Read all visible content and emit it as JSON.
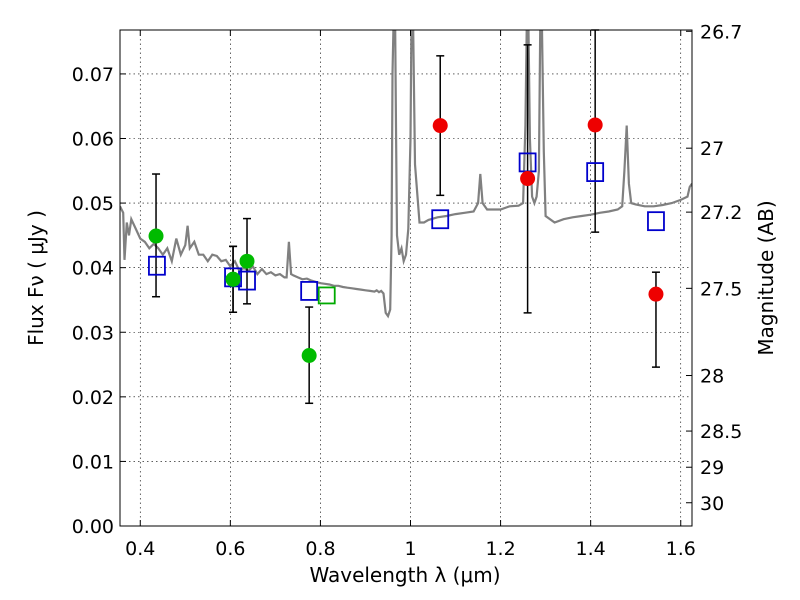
{
  "chart_data": {
    "type": "scatter",
    "title": "",
    "xlabel": "Wavelength  λ (μm)",
    "ylabel": "Flux  Fν  ( μJy )",
    "y2label": "Magnitude (AB)",
    "xlim": [
      0.355,
      1.625
    ],
    "ylim": [
      0.0,
      0.0768
    ],
    "grid": true,
    "x_ticks": [
      0.4,
      0.6,
      0.8,
      1.0,
      1.2,
      1.4,
      1.6
    ],
    "x_tick_labels": [
      "0.4",
      "0.6",
      "0.8",
      "1",
      "1.2",
      "1.4",
      "1.6"
    ],
    "y_ticks": [
      0.0,
      0.01,
      0.02,
      0.03,
      0.04,
      0.05,
      0.06,
      0.07
    ],
    "y_tick_labels": [
      "0.00",
      "0.01",
      "0.02",
      "0.03",
      "0.04",
      "0.05",
      "0.06",
      "0.07"
    ],
    "y2_ticks": [
      {
        "label": "26.7",
        "flux": 0.0766
      },
      {
        "label": "27",
        "flux": 0.0585
      },
      {
        "label": "27.2",
        "flux": 0.0486
      },
      {
        "label": "27.5",
        "flux": 0.0368
      },
      {
        "label": "28",
        "flux": 0.0233
      },
      {
        "label": "28.5",
        "flux": 0.0147
      },
      {
        "label": "29",
        "flux": 0.0091
      },
      {
        "label": "30",
        "flux": 0.0036
      }
    ],
    "colors": {
      "green": "#00bb00",
      "red": "#ee0000",
      "blue_square": "#0000cc",
      "green_square": "#00aa00",
      "model": "#808080",
      "errorbar": "#000000"
    },
    "series": [
      {
        "marker": "circle-green",
        "points": [
          {
            "x": 0.435,
            "y": 0.0449,
            "lo": 0.0355,
            "hi": 0.0545
          },
          {
            "x": 0.606,
            "y": 0.0382,
            "lo": 0.0331,
            "hi": 0.0433
          },
          {
            "x": 0.606,
            "y": 0.0382,
            "lo": 0.0331,
            "hi": 0.0433
          },
          {
            "x": 0.637,
            "y": 0.041,
            "lo": 0.0344,
            "hi": 0.0476
          },
          {
            "x": 0.775,
            "y": 0.0264,
            "lo": 0.019,
            "hi": 0.0339
          }
        ]
      },
      {
        "marker": "circle-red",
        "points": [
          {
            "x": 1.066,
            "y": 0.062,
            "lo": 0.0512,
            "hi": 0.0728
          },
          {
            "x": 1.26,
            "y": 0.0538,
            "lo": 0.033,
            "hi": 0.0745
          },
          {
            "x": 1.41,
            "y": 0.0621,
            "lo": 0.0455,
            "hi": 0.0768
          },
          {
            "x": 1.545,
            "y": 0.0359,
            "lo": 0.0246,
            "hi": 0.0393
          }
        ]
      },
      {
        "marker": "square-blue",
        "points": [
          {
            "x": 0.437,
            "y": 0.0403
          },
          {
            "x": 0.606,
            "y": 0.0385
          },
          {
            "x": 0.637,
            "y": 0.038
          },
          {
            "x": 0.775,
            "y": 0.0364
          },
          {
            "x": 1.066,
            "y": 0.0475
          },
          {
            "x": 1.26,
            "y": 0.0563
          },
          {
            "x": 1.41,
            "y": 0.0548
          },
          {
            "x": 1.545,
            "y": 0.0472
          }
        ]
      },
      {
        "marker": "square-green",
        "points": [
          {
            "x": 0.814,
            "y": 0.0357
          }
        ]
      },
      {
        "marker": "model-line",
        "points": [
          [
            0.355,
            0.0495
          ],
          [
            0.362,
            0.0485
          ],
          [
            0.365,
            0.0412
          ],
          [
            0.37,
            0.047
          ],
          [
            0.375,
            0.045
          ],
          [
            0.38,
            0.0475
          ],
          [
            0.39,
            0.046
          ],
          [
            0.4,
            0.0445
          ],
          [
            0.41,
            0.044
          ],
          [
            0.42,
            0.043
          ],
          [
            0.43,
            0.0437
          ],
          [
            0.44,
            0.043
          ],
          [
            0.45,
            0.042
          ],
          [
            0.46,
            0.043
          ],
          [
            0.47,
            0.041
          ],
          [
            0.48,
            0.0445
          ],
          [
            0.49,
            0.042
          ],
          [
            0.5,
            0.0435
          ],
          [
            0.505,
            0.0465
          ],
          [
            0.51,
            0.043
          ],
          [
            0.52,
            0.044
          ],
          [
            0.53,
            0.042
          ],
          [
            0.54,
            0.042
          ],
          [
            0.55,
            0.041
          ],
          [
            0.56,
            0.042
          ],
          [
            0.57,
            0.0418
          ],
          [
            0.58,
            0.041
          ],
          [
            0.59,
            0.0412
          ],
          [
            0.6,
            0.0402
          ],
          [
            0.61,
            0.041
          ],
          [
            0.62,
            0.0395
          ],
          [
            0.63,
            0.04
          ],
          [
            0.64,
            0.0395
          ],
          [
            0.65,
            0.0402
          ],
          [
            0.66,
            0.039
          ],
          [
            0.67,
            0.0398
          ],
          [
            0.68,
            0.039
          ],
          [
            0.69,
            0.0393
          ],
          [
            0.7,
            0.0388
          ],
          [
            0.71,
            0.039
          ],
          [
            0.72,
            0.0385
          ],
          [
            0.725,
            0.0385
          ],
          [
            0.73,
            0.044
          ],
          [
            0.735,
            0.039
          ],
          [
            0.74,
            0.0388
          ],
          [
            0.75,
            0.0385
          ],
          [
            0.76,
            0.0382
          ],
          [
            0.77,
            0.0383
          ],
          [
            0.78,
            0.038
          ],
          [
            0.79,
            0.0378
          ],
          [
            0.8,
            0.0376
          ],
          [
            0.81,
            0.0375
          ],
          [
            0.82,
            0.0374
          ],
          [
            0.83,
            0.0372
          ],
          [
            0.84,
            0.0372
          ],
          [
            0.85,
            0.037
          ],
          [
            0.86,
            0.0369
          ],
          [
            0.87,
            0.0368
          ],
          [
            0.88,
            0.0367
          ],
          [
            0.89,
            0.0366
          ],
          [
            0.9,
            0.0365
          ],
          [
            0.91,
            0.0364
          ],
          [
            0.92,
            0.0363
          ],
          [
            0.925,
            0.0365
          ],
          [
            0.93,
            0.0362
          ],
          [
            0.935,
            0.0364
          ],
          [
            0.94,
            0.036
          ],
          [
            0.945,
            0.033
          ],
          [
            0.95,
            0.0325
          ],
          [
            0.955,
            0.0335
          ],
          [
            0.958,
            0.045
          ],
          [
            0.96,
            0.07
          ],
          [
            0.962,
            0.0768
          ],
          [
            0.966,
            0.0768
          ],
          [
            0.968,
            0.06
          ],
          [
            0.97,
            0.045
          ],
          [
            0.975,
            0.042
          ],
          [
            0.98,
            0.043
          ],
          [
            0.985,
            0.041
          ],
          [
            0.99,
            0.042
          ],
          [
            0.995,
            0.046
          ],
          [
            1.0,
            0.06
          ],
          [
            1.002,
            0.0768
          ],
          [
            1.006,
            0.0768
          ],
          [
            1.01,
            0.056
          ],
          [
            1.02,
            0.047
          ],
          [
            1.03,
            0.047
          ],
          [
            1.04,
            0.0474
          ],
          [
            1.06,
            0.0478
          ],
          [
            1.08,
            0.048
          ],
          [
            1.1,
            0.0483
          ],
          [
            1.12,
            0.0485
          ],
          [
            1.14,
            0.0487
          ],
          [
            1.15,
            0.05
          ],
          [
            1.155,
            0.0545
          ],
          [
            1.16,
            0.05
          ],
          [
            1.17,
            0.049
          ],
          [
            1.18,
            0.049
          ],
          [
            1.2,
            0.049
          ],
          [
            1.22,
            0.0495
          ],
          [
            1.24,
            0.0496
          ],
          [
            1.25,
            0.05
          ],
          [
            1.255,
            0.062
          ],
          [
            1.258,
            0.0768
          ],
          [
            1.262,
            0.0768
          ],
          [
            1.265,
            0.06
          ],
          [
            1.27,
            0.051
          ],
          [
            1.275,
            0.05
          ],
          [
            1.28,
            0.051
          ],
          [
            1.285,
            0.055
          ],
          [
            1.288,
            0.0768
          ],
          [
            1.292,
            0.0768
          ],
          [
            1.296,
            0.058
          ],
          [
            1.3,
            0.048
          ],
          [
            1.32,
            0.047
          ],
          [
            1.34,
            0.0475
          ],
          [
            1.36,
            0.0478
          ],
          [
            1.38,
            0.048
          ],
          [
            1.4,
            0.0482
          ],
          [
            1.42,
            0.0485
          ],
          [
            1.44,
            0.0487
          ],
          [
            1.46,
            0.049
          ],
          [
            1.47,
            0.0495
          ],
          [
            1.475,
            0.055
          ],
          [
            1.48,
            0.062
          ],
          [
            1.485,
            0.053
          ],
          [
            1.49,
            0.05
          ],
          [
            1.5,
            0.0498
          ],
          [
            1.52,
            0.0495
          ],
          [
            1.54,
            0.0495
          ],
          [
            1.56,
            0.0497
          ],
          [
            1.58,
            0.05
          ],
          [
            1.6,
            0.0505
          ],
          [
            1.615,
            0.051
          ],
          [
            1.62,
            0.0525
          ],
          [
            1.625,
            0.053
          ]
        ]
      }
    ]
  }
}
